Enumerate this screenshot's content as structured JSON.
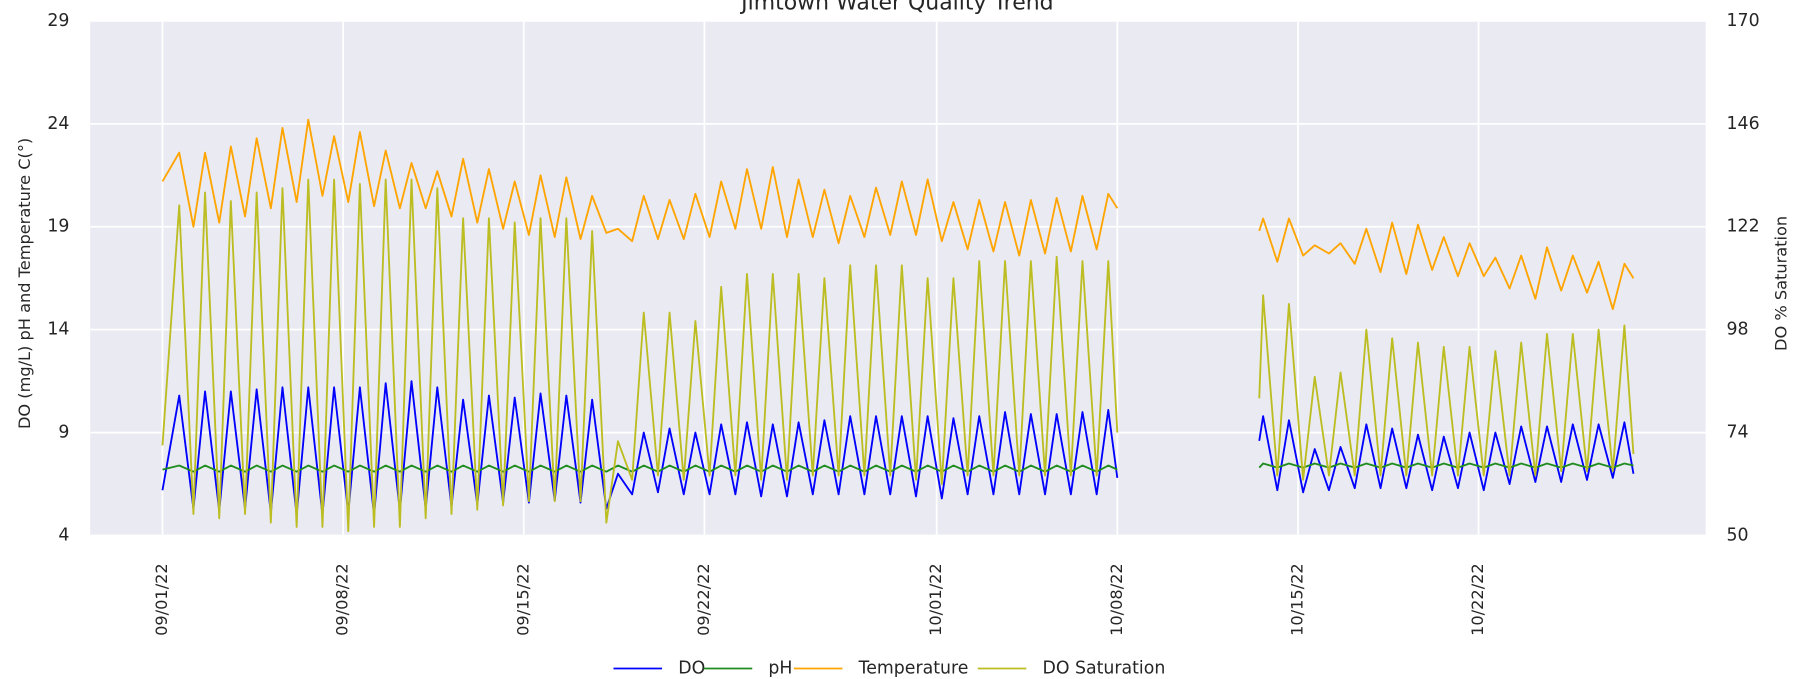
{
  "chart_data": {
    "type": "line",
    "title": "Jimtown Water Quality Trend",
    "y_label": "DO (mg/L) pH and Temperature C(°)",
    "y2_label": "DO % Saturation",
    "x": [
      0,
      0.65,
      1.2,
      1.65,
      2.2,
      2.65,
      3.2,
      3.65,
      4.2,
      4.65,
      5.2,
      5.65,
      6.2,
      6.65,
      7.2,
      7.65,
      8.2,
      8.65,
      9.2,
      9.65,
      10.2,
      10.65,
      11.2,
      11.65,
      12.2,
      12.65,
      13.2,
      13.65,
      14.2,
      14.65,
      15.2,
      15.65,
      16.2,
      16.65,
      17.2,
      17.65,
      18.2,
      18.65,
      19.2,
      19.65,
      20.2,
      20.65,
      21.2,
      21.65,
      22.2,
      22.65,
      23.2,
      23.65,
      24.2,
      24.65,
      25.2,
      25.65,
      26.2,
      26.65,
      27.2,
      27.65,
      28.2,
      28.65,
      29.2,
      29.65,
      30.2,
      30.65,
      31.2,
      31.65,
      32.2,
      32.65,
      33.2,
      33.65,
      34.2,
      34.65,
      35.2,
      35.65,
      36.2,
      36.65,
      37,
      40,
      42.5,
      42.65,
      43.2,
      43.65,
      44.2,
      44.65,
      45.2,
      45.65,
      46.2,
      46.65,
      47.2,
      47.65,
      48.2,
      48.65,
      49.2,
      49.65,
      50.2,
      50.65,
      51.2,
      51.65,
      52.2,
      52.65,
      53.2,
      53.65,
      54.2,
      54.65,
      55.2,
      55.65,
      56.2,
      56.65,
      57
    ],
    "xlim": [
      -2.8,
      59.8
    ],
    "xticks": [
      {
        "value": 0,
        "label": "09/01/22"
      },
      {
        "value": 7,
        "label": "09/08/22"
      },
      {
        "value": 14,
        "label": "09/15/22"
      },
      {
        "value": 21,
        "label": "09/22/22"
      },
      {
        "value": 30,
        "label": "10/01/22"
      },
      {
        "value": 37,
        "label": "10/08/22"
      },
      {
        "value": 44,
        "label": "10/15/22"
      },
      {
        "value": 51,
        "label": "10/22/22"
      }
    ],
    "ylim": [
      4,
      29
    ],
    "yticks": [
      4,
      9,
      14,
      19,
      24,
      29
    ],
    "y2lim": [
      50,
      170
    ],
    "y2ticks": [
      50,
      74,
      98,
      122,
      146,
      170
    ],
    "grid": true,
    "legend": "lower center",
    "series": [
      {
        "name": "DO",
        "color": "#0000ff",
        "values": [
          6.2,
          10.8,
          5.3,
          11,
          5.2,
          11,
          5.3,
          11.1,
          5.1,
          11.2,
          5.0,
          11.2,
          5.0,
          11.2,
          5.1,
          11.2,
          5.0,
          11.4,
          5.2,
          11.5,
          5.3,
          11.2,
          5.4,
          10.6,
          5.5,
          10.8,
          5.6,
          10.7,
          5.6,
          10.9,
          5.7,
          10.8,
          5.6,
          10.6,
          5.3,
          7.0,
          6.0,
          9.0,
          6.1,
          9.2,
          6.0,
          9.0,
          6.0,
          9.4,
          6.0,
          9.5,
          5.9,
          9.4,
          5.9,
          9.5,
          6.0,
          9.6,
          6.0,
          9.8,
          6.0,
          9.8,
          6.0,
          9.8,
          5.9,
          9.8,
          5.8,
          9.7,
          6.0,
          9.8,
          6.0,
          10.0,
          6.0,
          9.9,
          6.0,
          9.9,
          6.0,
          10.0,
          6.0,
          10.1,
          6.8,
          null,
          8.6,
          9.8,
          6.2,
          9.6,
          6.1,
          8.2,
          6.2,
          8.3,
          6.3,
          9.4,
          6.3,
          9.2,
          6.3,
          8.9,
          6.2,
          8.8,
          6.3,
          9.0,
          6.2,
          9.0,
          6.5,
          9.3,
          6.6,
          9.3,
          6.6,
          9.4,
          6.7,
          9.4,
          6.8,
          9.5,
          7.0
        ]
      },
      {
        "name": "pH",
        "color": "#1e8c1e",
        "values": [
          7.2,
          7.4,
          7.1,
          7.4,
          7.1,
          7.4,
          7.1,
          7.4,
          7.1,
          7.4,
          7.1,
          7.4,
          7.1,
          7.4,
          7.1,
          7.4,
          7.1,
          7.4,
          7.1,
          7.4,
          7.1,
          7.4,
          7.1,
          7.4,
          7.1,
          7.4,
          7.1,
          7.4,
          7.1,
          7.4,
          7.1,
          7.4,
          7.1,
          7.4,
          7.1,
          7.4,
          7.1,
          7.4,
          7.1,
          7.4,
          7.1,
          7.4,
          7.1,
          7.4,
          7.1,
          7.4,
          7.1,
          7.4,
          7.1,
          7.4,
          7.1,
          7.4,
          7.1,
          7.4,
          7.1,
          7.4,
          7.1,
          7.4,
          7.1,
          7.4,
          7.1,
          7.4,
          7.1,
          7.4,
          7.1,
          7.4,
          7.1,
          7.4,
          7.1,
          7.4,
          7.1,
          7.4,
          7.1,
          7.4,
          7.2,
          null,
          7.3,
          7.5,
          7.3,
          7.5,
          7.3,
          7.5,
          7.3,
          7.5,
          7.3,
          7.5,
          7.3,
          7.5,
          7.3,
          7.5,
          7.3,
          7.5,
          7.3,
          7.5,
          7.3,
          7.5,
          7.3,
          7.5,
          7.3,
          7.5,
          7.3,
          7.5,
          7.3,
          7.5,
          7.3,
          7.5,
          7.4
        ]
      },
      {
        "name": "Temperature",
        "color": "#ffa500",
        "values": [
          21.2,
          22.6,
          19,
          22.6,
          19.2,
          22.9,
          19.5,
          23.3,
          19.9,
          23.8,
          20.2,
          24.2,
          20.5,
          23.4,
          20.2,
          23.6,
          20,
          22.7,
          19.9,
          22.1,
          19.9,
          21.7,
          19.5,
          22.3,
          19.2,
          21.8,
          18.9,
          21.2,
          18.6,
          21.5,
          18.5,
          21.4,
          18.4,
          20.5,
          18.7,
          18.9,
          18.3,
          20.5,
          18.4,
          20.3,
          18.4,
          20.6,
          18.5,
          21.2,
          18.9,
          21.8,
          18.9,
          21.9,
          18.5,
          21.3,
          18.5,
          20.8,
          18.2,
          20.5,
          18.5,
          20.9,
          18.6,
          21.2,
          18.6,
          21.3,
          18.3,
          20.2,
          17.9,
          20.3,
          17.8,
          20.2,
          17.6,
          20.3,
          17.7,
          20.4,
          17.8,
          20.5,
          17.9,
          20.6,
          19.9,
          null,
          18.8,
          19.4,
          17.3,
          19.4,
          17.6,
          18.1,
          17.7,
          18.2,
          17.2,
          18.9,
          16.8,
          19.2,
          16.7,
          19.1,
          16.9,
          18.5,
          16.6,
          18.2,
          16.6,
          17.5,
          16.0,
          17.6,
          15.5,
          18.0,
          15.9,
          17.6,
          15.8,
          17.3,
          15.0,
          17.2,
          16.5
        ]
      },
      {
        "name": "DO Saturation",
        "color": "#bcbd22",
        "axis": "y2",
        "values": [
          71,
          127,
          55,
          130,
          54,
          128,
          55,
          130,
          53,
          131,
          52,
          133,
          52,
          133,
          51,
          132,
          52,
          133,
          52,
          133,
          54,
          131,
          55,
          124,
          56,
          124,
          57,
          123,
          58,
          124,
          58,
          124,
          58,
          121,
          53,
          72,
          63,
          102,
          64,
          102,
          63,
          100,
          64,
          108,
          64,
          111,
          63,
          111,
          63,
          111,
          64,
          110,
          64,
          113,
          64,
          113,
          64,
          113,
          63,
          110,
          62,
          110,
          64,
          114,
          64,
          114,
          64,
          114,
          64,
          115,
          64,
          114,
          64,
          114,
          74,
          null,
          82,
          106,
          64,
          104,
          63,
          87,
          64,
          88,
          64,
          98,
          64,
          96,
          64,
          95,
          64,
          94,
          64,
          94,
          64,
          93,
          64,
          95,
          64,
          97,
          65,
          97,
          65,
          98,
          65,
          99,
          69
        ]
      }
    ]
  }
}
